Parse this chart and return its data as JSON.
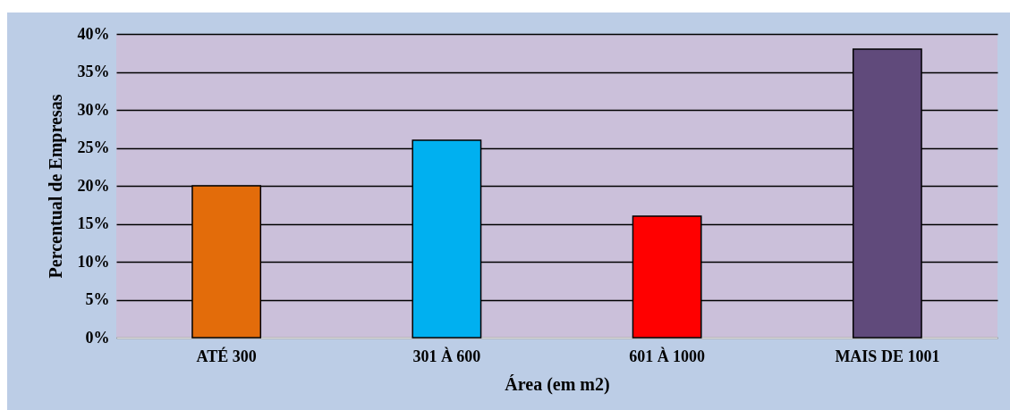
{
  "chart_data": {
    "type": "bar",
    "xlabel": "Área (em m2)",
    "ylabel": "Percentual de Empresas",
    "categories": [
      "ATÉ 300",
      "301 À 600",
      "601 À 1000",
      "MAIS DE 1001"
    ],
    "values": [
      20,
      26,
      16,
      38
    ],
    "colors": [
      "#e36c0a",
      "#00b0f0",
      "#ff0000",
      "#604a7b"
    ],
    "ylim": [
      0,
      40
    ],
    "yticks": [
      {
        "value": 0,
        "label": "0%"
      },
      {
        "value": 5,
        "label": "5%"
      },
      {
        "value": 10,
        "label": "10%"
      },
      {
        "value": 15,
        "label": "15%"
      },
      {
        "value": 20,
        "label": "20%"
      },
      {
        "value": 25,
        "label": "25%"
      },
      {
        "value": 30,
        "label": "30%"
      },
      {
        "value": 35,
        "label": "35%"
      },
      {
        "value": 40,
        "label": "40%"
      }
    ],
    "grid": "y"
  }
}
